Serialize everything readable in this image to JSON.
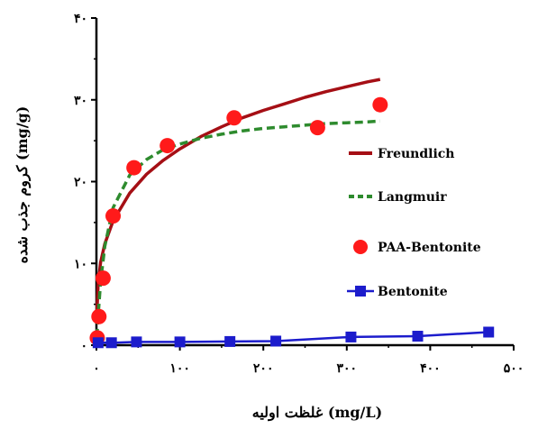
{
  "chart_data": {
    "type": "line",
    "xlabel": "(mg/L) غلظت اولیه",
    "ylabel": "(mg/g) کروم جذب شده",
    "xlim": [
      0,
      500
    ],
    "ylim": [
      0,
      40
    ],
    "x_ticks": [
      {
        "value": 0,
        "label": "۰"
      },
      {
        "value": 100,
        "label": "۱۰۰"
      },
      {
        "value": 200,
        "label": "۲۰۰"
      },
      {
        "value": 300,
        "label": "۳۰۰"
      },
      {
        "value": 400,
        "label": "۴۰۰"
      },
      {
        "value": 500,
        "label": "۵۰۰"
      }
    ],
    "y_ticks": [
      {
        "value": 0,
        "label": "۰"
      },
      {
        "value": 10,
        "label": "۱۰"
      },
      {
        "value": 20,
        "label": "۲۰"
      },
      {
        "value": 30,
        "label": "۳۰"
      },
      {
        "value": 40,
        "label": "۴۰"
      }
    ],
    "grid": false,
    "legend_position": "right",
    "series": [
      {
        "name": "Freundlich",
        "kind": "fit-line",
        "style": "solid",
        "color": "#a50f15",
        "x": [
          0.5,
          2,
          5,
          10,
          20,
          40,
          60,
          80,
          100,
          125,
          150,
          175,
          200,
          225,
          250,
          275,
          300,
          325,
          340
        ],
        "y": [
          3.9,
          7.5,
          10.1,
          12.4,
          15.2,
          18.6,
          20.9,
          22.6,
          24.0,
          25.5,
          26.7,
          27.8,
          28.7,
          29.5,
          30.3,
          31.0,
          31.6,
          32.2,
          32.5
        ]
      },
      {
        "name": "Langmuir",
        "kind": "fit-line",
        "style": "dashed",
        "color": "#2e8b2e",
        "x": [
          0.5,
          2,
          5,
          10,
          20,
          40,
          60,
          80,
          100,
          125,
          150,
          175,
          200,
          225,
          250,
          275,
          300,
          325,
          340
        ],
        "y": [
          1.0,
          3.6,
          7.7,
          12.1,
          16.8,
          20.8,
          22.7,
          23.9,
          24.6,
          25.3,
          25.8,
          26.2,
          26.5,
          26.7,
          26.9,
          27.1,
          27.2,
          27.3,
          27.4
        ]
      },
      {
        "name": "PAA-Bentonite",
        "kind": "points",
        "color": "#ff1a1a",
        "x": [
          1,
          3,
          8,
          20,
          45,
          85,
          165,
          265,
          340
        ],
        "y": [
          0.9,
          3.5,
          8.2,
          15.8,
          21.7,
          24.4,
          27.8,
          26.6,
          29.4
        ]
      },
      {
        "name": "Bentonite",
        "kind": "line-markers",
        "color": "#1c1ccc",
        "x": [
          2,
          18,
          48,
          100,
          160,
          215,
          305,
          385,
          470
        ],
        "y": [
          0.3,
          0.3,
          0.4,
          0.4,
          0.45,
          0.5,
          1.0,
          1.1,
          1.6
        ]
      }
    ]
  }
}
